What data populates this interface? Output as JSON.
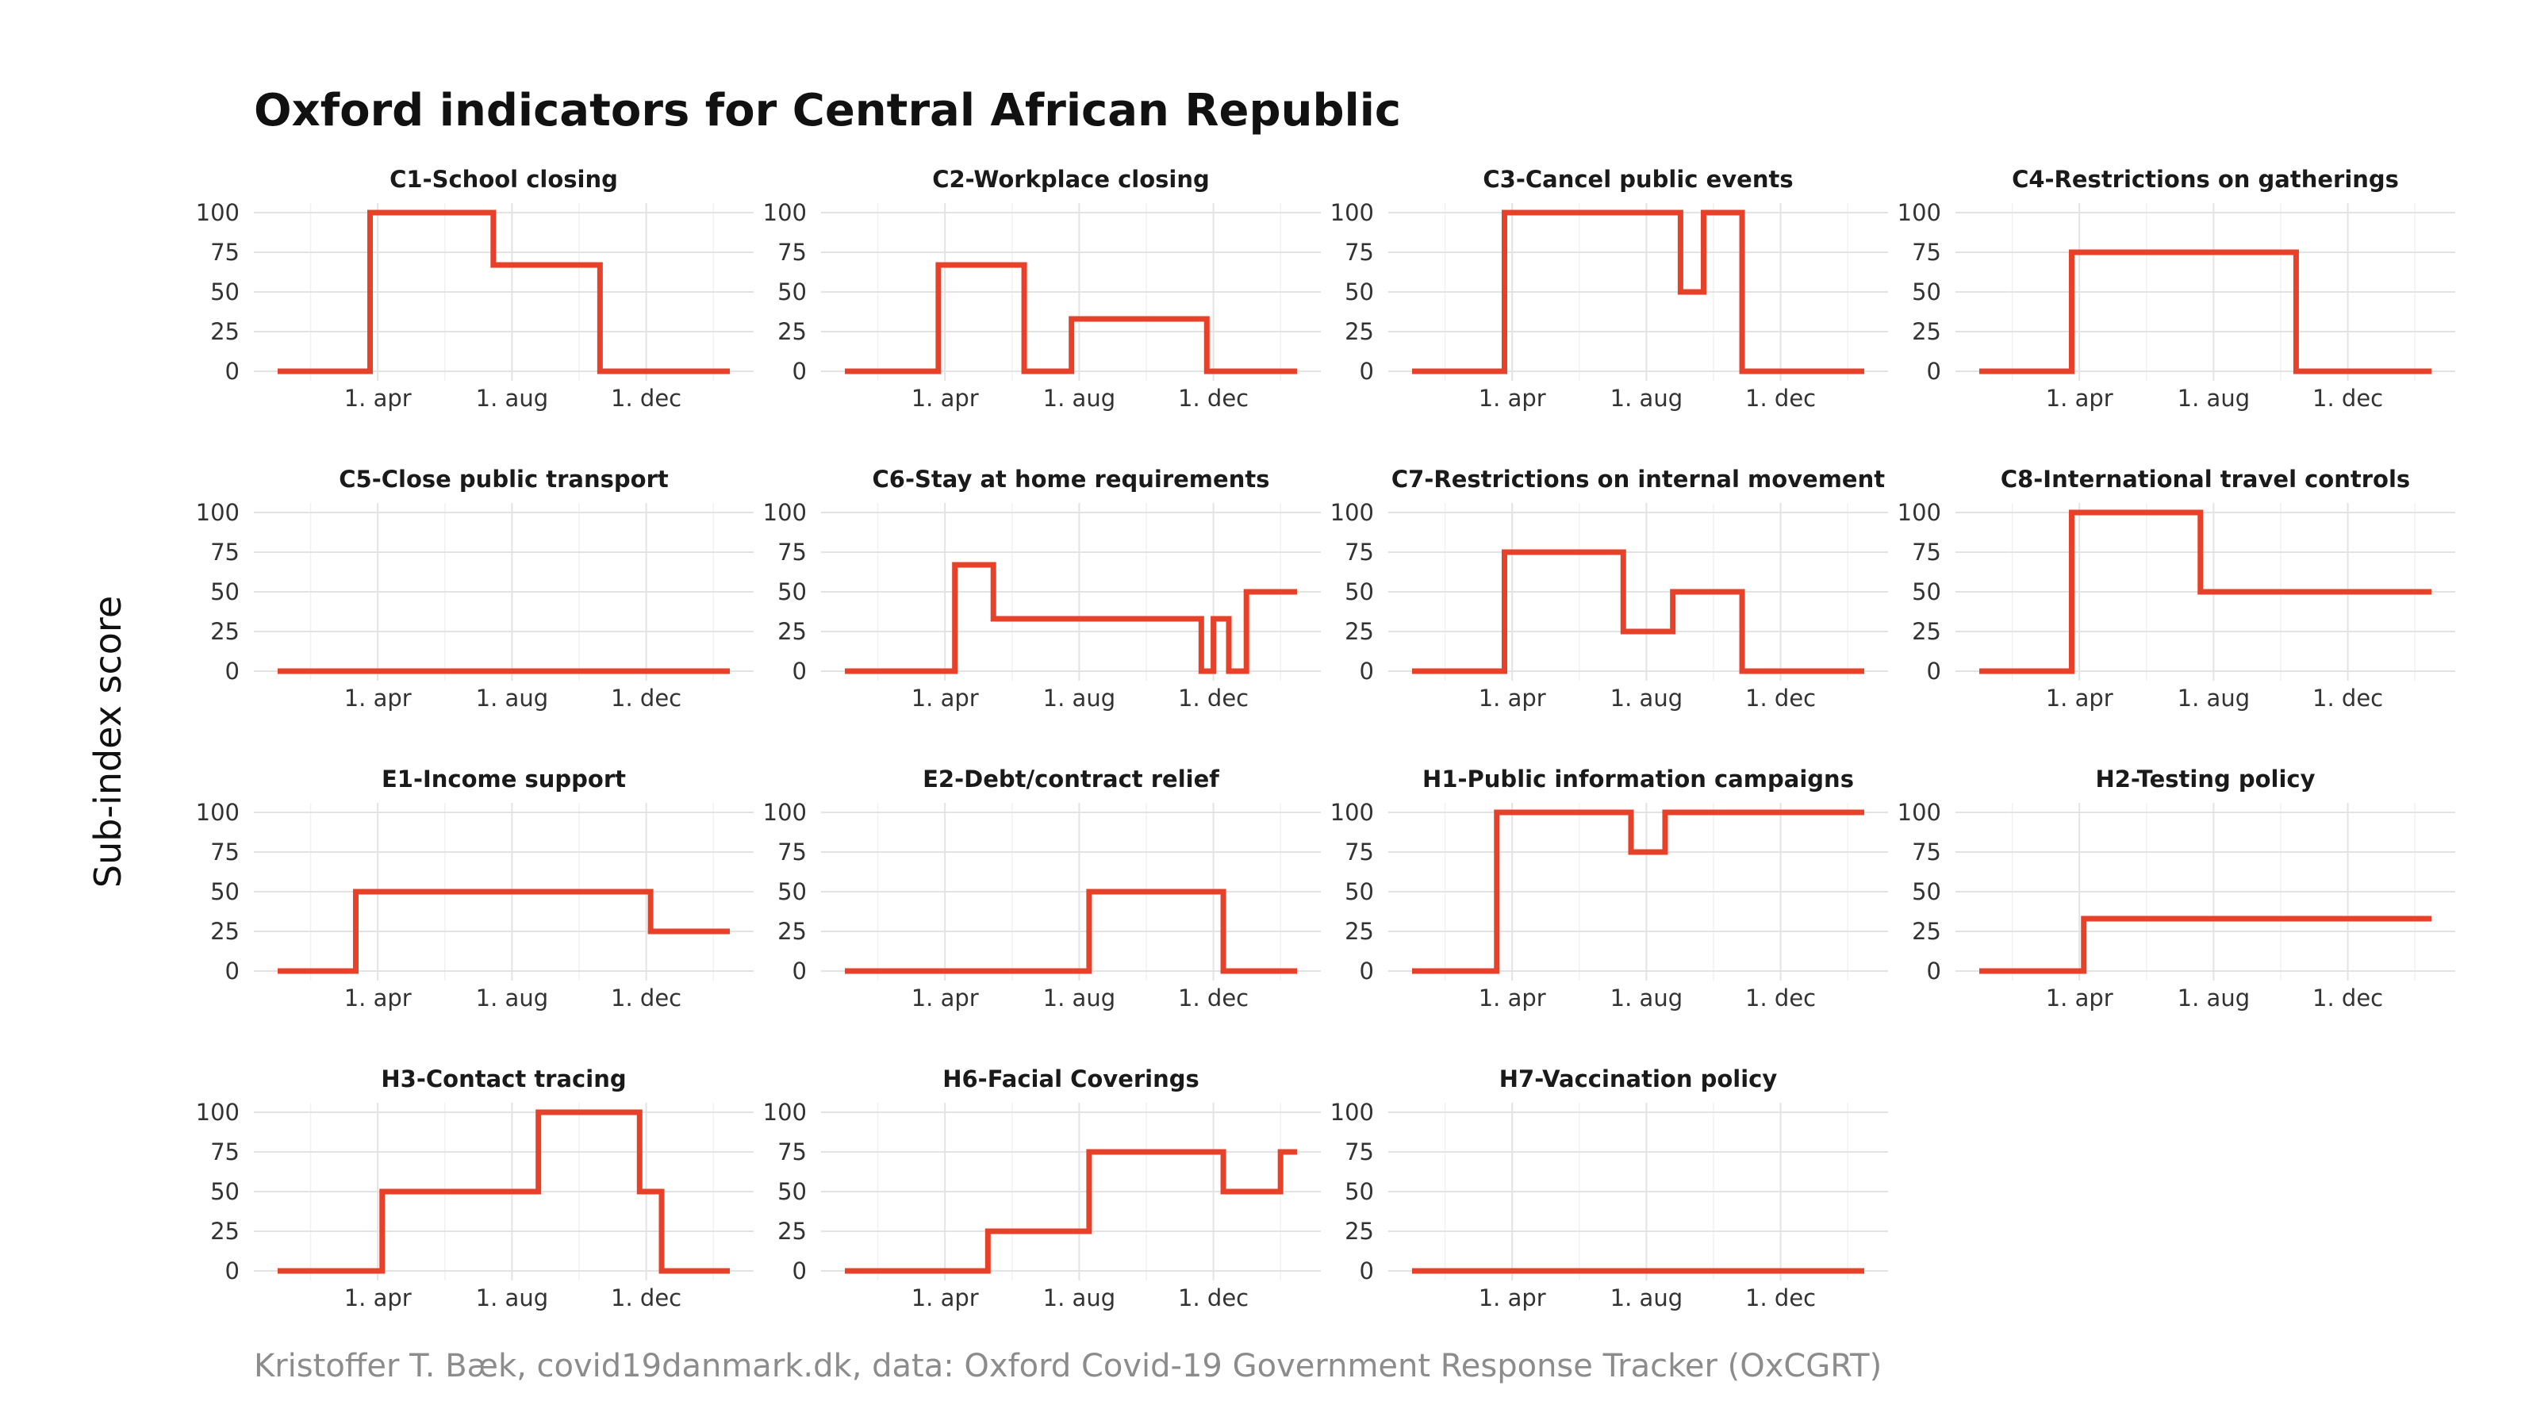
{
  "figure": {
    "title": "Oxford indicators for Central African Republic",
    "ylabel": "Sub-index score",
    "caption": "Kristoffer T. Bæk, covid19danmark.dk, data: Oxford Covid-19 Government Response Tracker (OxCGRT)",
    "line_color": "#e8412a"
  },
  "chart_data": [
    {
      "type": "line",
      "step": true,
      "title": "C1-School closing",
      "x_ticks": [
        {
          "date": "2020-04-01",
          "label": "1. apr"
        },
        {
          "date": "2020-08-01",
          "label": "1. aug"
        },
        {
          "date": "2020-12-01",
          "label": "1. dec"
        }
      ],
      "y_ticks": [
        0,
        25,
        50,
        75,
        100
      ],
      "ylim": [
        0,
        100
      ],
      "xlim": [
        "2020-01-01",
        "2021-02-15"
      ],
      "series": [
        {
          "points": [
            [
              "2020-01-01",
              0
            ],
            [
              "2020-03-25",
              100
            ],
            [
              "2020-07-15",
              67
            ],
            [
              "2020-10-20",
              0
            ],
            [
              "2021-02-15",
              0
            ]
          ]
        }
      ]
    },
    {
      "type": "line",
      "step": true,
      "title": "C2-Workplace closing",
      "x_ticks": [
        {
          "date": "2020-04-01",
          "label": "1. apr"
        },
        {
          "date": "2020-08-01",
          "label": "1. aug"
        },
        {
          "date": "2020-12-01",
          "label": "1. dec"
        }
      ],
      "y_ticks": [
        0,
        25,
        50,
        75,
        100
      ],
      "ylim": [
        0,
        100
      ],
      "xlim": [
        "2020-01-01",
        "2021-02-15"
      ],
      "series": [
        {
          "points": [
            [
              "2020-01-01",
              0
            ],
            [
              "2020-03-26",
              67
            ],
            [
              "2020-06-12",
              0
            ],
            [
              "2020-07-25",
              33
            ],
            [
              "2020-11-25",
              0
            ],
            [
              "2021-02-15",
              0
            ]
          ]
        }
      ]
    },
    {
      "type": "line",
      "step": true,
      "title": "C3-Cancel public events",
      "x_ticks": [
        {
          "date": "2020-04-01",
          "label": "1. apr"
        },
        {
          "date": "2020-08-01",
          "label": "1. aug"
        },
        {
          "date": "2020-12-01",
          "label": "1. dec"
        }
      ],
      "y_ticks": [
        0,
        25,
        50,
        75,
        100
      ],
      "ylim": [
        0,
        100
      ],
      "xlim": [
        "2020-01-01",
        "2021-02-15"
      ],
      "series": [
        {
          "points": [
            [
              "2020-01-01",
              0
            ],
            [
              "2020-03-25",
              100
            ],
            [
              "2020-09-01",
              50
            ],
            [
              "2020-09-22",
              100
            ],
            [
              "2020-10-27",
              0
            ],
            [
              "2021-02-15",
              0
            ]
          ]
        }
      ]
    },
    {
      "type": "line",
      "step": true,
      "title": "C4-Restrictions on gatherings",
      "x_ticks": [
        {
          "date": "2020-04-01",
          "label": "1. apr"
        },
        {
          "date": "2020-08-01",
          "label": "1. aug"
        },
        {
          "date": "2020-12-01",
          "label": "1. dec"
        }
      ],
      "y_ticks": [
        0,
        25,
        50,
        75,
        100
      ],
      "ylim": [
        0,
        100
      ],
      "xlim": [
        "2020-01-01",
        "2021-02-15"
      ],
      "series": [
        {
          "points": [
            [
              "2020-01-01",
              0
            ],
            [
              "2020-03-25",
              75
            ],
            [
              "2020-10-15",
              0
            ],
            [
              "2021-02-15",
              0
            ]
          ]
        }
      ]
    },
    {
      "type": "line",
      "step": true,
      "title": "C5-Close public transport",
      "x_ticks": [
        {
          "date": "2020-04-01",
          "label": "1. apr"
        },
        {
          "date": "2020-08-01",
          "label": "1. aug"
        },
        {
          "date": "2020-12-01",
          "label": "1. dec"
        }
      ],
      "y_ticks": [
        0,
        25,
        50,
        75,
        100
      ],
      "ylim": [
        0,
        100
      ],
      "xlim": [
        "2020-01-01",
        "2021-02-15"
      ],
      "series": [
        {
          "points": [
            [
              "2020-01-01",
              0
            ],
            [
              "2021-02-15",
              0
            ]
          ]
        }
      ]
    },
    {
      "type": "line",
      "step": true,
      "title": "C6-Stay at home requirements",
      "x_ticks": [
        {
          "date": "2020-04-01",
          "label": "1. apr"
        },
        {
          "date": "2020-08-01",
          "label": "1. aug"
        },
        {
          "date": "2020-12-01",
          "label": "1. dec"
        }
      ],
      "y_ticks": [
        0,
        25,
        50,
        75,
        100
      ],
      "ylim": [
        0,
        100
      ],
      "xlim": [
        "2020-01-01",
        "2021-02-15"
      ],
      "series": [
        {
          "points": [
            [
              "2020-01-01",
              0
            ],
            [
              "2020-04-10",
              67
            ],
            [
              "2020-05-15",
              33
            ],
            [
              "2020-11-20",
              0
            ],
            [
              "2020-12-01",
              33
            ],
            [
              "2020-12-15",
              0
            ],
            [
              "2020-12-31",
              50
            ],
            [
              "2021-02-15",
              50
            ]
          ]
        }
      ]
    },
    {
      "type": "line",
      "step": true,
      "title": "C7-Restrictions on internal movement",
      "x_ticks": [
        {
          "date": "2020-04-01",
          "label": "1. apr"
        },
        {
          "date": "2020-08-01",
          "label": "1. aug"
        },
        {
          "date": "2020-12-01",
          "label": "1. dec"
        }
      ],
      "y_ticks": [
        0,
        25,
        50,
        75,
        100
      ],
      "ylim": [
        0,
        100
      ],
      "xlim": [
        "2020-01-01",
        "2021-02-15"
      ],
      "series": [
        {
          "points": [
            [
              "2020-01-01",
              0
            ],
            [
              "2020-03-25",
              75
            ],
            [
              "2020-07-11",
              25
            ],
            [
              "2020-08-25",
              50
            ],
            [
              "2020-10-27",
              0
            ],
            [
              "2021-02-15",
              0
            ]
          ]
        }
      ]
    },
    {
      "type": "line",
      "step": true,
      "title": "C8-International travel controls",
      "x_ticks": [
        {
          "date": "2020-04-01",
          "label": "1. apr"
        },
        {
          "date": "2020-08-01",
          "label": "1. aug"
        },
        {
          "date": "2020-12-01",
          "label": "1. dec"
        }
      ],
      "y_ticks": [
        0,
        25,
        50,
        75,
        100
      ],
      "ylim": [
        0,
        100
      ],
      "xlim": [
        "2020-01-01",
        "2021-02-15"
      ],
      "series": [
        {
          "points": [
            [
              "2020-01-01",
              0
            ],
            [
              "2020-03-25",
              100
            ],
            [
              "2020-07-20",
              50
            ],
            [
              "2021-02-15",
              50
            ]
          ]
        }
      ]
    },
    {
      "type": "line",
      "step": true,
      "title": "E1-Income support",
      "x_ticks": [
        {
          "date": "2020-04-01",
          "label": "1. apr"
        },
        {
          "date": "2020-08-01",
          "label": "1. aug"
        },
        {
          "date": "2020-12-01",
          "label": "1. dec"
        }
      ],
      "y_ticks": [
        0,
        25,
        50,
        75,
        100
      ],
      "ylim": [
        0,
        100
      ],
      "xlim": [
        "2020-01-01",
        "2021-02-15"
      ],
      "series": [
        {
          "points": [
            [
              "2020-01-01",
              0
            ],
            [
              "2020-03-12",
              50
            ],
            [
              "2020-12-05",
              25
            ],
            [
              "2021-02-15",
              25
            ]
          ]
        }
      ]
    },
    {
      "type": "line",
      "step": true,
      "title": "E2-Debt/contract relief",
      "x_ticks": [
        {
          "date": "2020-04-01",
          "label": "1. apr"
        },
        {
          "date": "2020-08-01",
          "label": "1. aug"
        },
        {
          "date": "2020-12-01",
          "label": "1. dec"
        }
      ],
      "y_ticks": [
        0,
        25,
        50,
        75,
        100
      ],
      "ylim": [
        0,
        100
      ],
      "xlim": [
        "2020-01-01",
        "2021-02-15"
      ],
      "series": [
        {
          "points": [
            [
              "2020-01-01",
              0
            ],
            [
              "2020-08-10",
              50
            ],
            [
              "2020-12-10",
              0
            ],
            [
              "2021-02-15",
              0
            ]
          ]
        }
      ]
    },
    {
      "type": "line",
      "step": true,
      "title": "H1-Public information campaigns",
      "x_ticks": [
        {
          "date": "2020-04-01",
          "label": "1. apr"
        },
        {
          "date": "2020-08-01",
          "label": "1. aug"
        },
        {
          "date": "2020-12-01",
          "label": "1. dec"
        }
      ],
      "y_ticks": [
        0,
        25,
        50,
        75,
        100
      ],
      "ylim": [
        0,
        100
      ],
      "xlim": [
        "2020-01-01",
        "2021-02-15"
      ],
      "series": [
        {
          "points": [
            [
              "2020-01-01",
              0
            ],
            [
              "2020-03-18",
              100
            ],
            [
              "2020-07-18",
              75
            ],
            [
              "2020-08-18",
              100
            ],
            [
              "2021-02-15",
              100
            ]
          ]
        }
      ]
    },
    {
      "type": "line",
      "step": true,
      "title": "H2-Testing policy",
      "x_ticks": [
        {
          "date": "2020-04-01",
          "label": "1. apr"
        },
        {
          "date": "2020-08-01",
          "label": "1. aug"
        },
        {
          "date": "2020-12-01",
          "label": "1. dec"
        }
      ],
      "y_ticks": [
        0,
        25,
        50,
        75,
        100
      ],
      "ylim": [
        0,
        100
      ],
      "xlim": [
        "2020-01-01",
        "2021-02-15"
      ],
      "series": [
        {
          "points": [
            [
              "2020-01-01",
              0
            ],
            [
              "2020-04-05",
              33
            ],
            [
              "2021-02-15",
              33
            ]
          ]
        }
      ]
    },
    {
      "type": "line",
      "step": true,
      "title": "H3-Contact tracing",
      "x_ticks": [
        {
          "date": "2020-04-01",
          "label": "1. apr"
        },
        {
          "date": "2020-08-01",
          "label": "1. aug"
        },
        {
          "date": "2020-12-01",
          "label": "1. dec"
        }
      ],
      "y_ticks": [
        0,
        25,
        50,
        75,
        100
      ],
      "ylim": [
        0,
        100
      ],
      "xlim": [
        "2020-01-01",
        "2021-02-15"
      ],
      "series": [
        {
          "points": [
            [
              "2020-01-01",
              0
            ],
            [
              "2020-04-05",
              50
            ],
            [
              "2020-08-25",
              100
            ],
            [
              "2020-11-25",
              50
            ],
            [
              "2020-12-15",
              0
            ],
            [
              "2021-02-15",
              0
            ]
          ]
        }
      ]
    },
    {
      "type": "line",
      "step": true,
      "title": "H6-Facial Coverings",
      "x_ticks": [
        {
          "date": "2020-04-01",
          "label": "1. apr"
        },
        {
          "date": "2020-08-01",
          "label": "1. aug"
        },
        {
          "date": "2020-12-01",
          "label": "1. dec"
        }
      ],
      "y_ticks": [
        0,
        25,
        50,
        75,
        100
      ],
      "ylim": [
        0,
        100
      ],
      "xlim": [
        "2020-01-01",
        "2021-02-15"
      ],
      "series": [
        {
          "points": [
            [
              "2020-01-01",
              0
            ],
            [
              "2020-05-10",
              25
            ],
            [
              "2020-08-10",
              75
            ],
            [
              "2020-12-10",
              50
            ],
            [
              "2021-01-31",
              75
            ],
            [
              "2021-02-15",
              75
            ]
          ]
        }
      ]
    },
    {
      "type": "line",
      "step": true,
      "title": "H7-Vaccination policy",
      "x_ticks": [
        {
          "date": "2020-04-01",
          "label": "1. apr"
        },
        {
          "date": "2020-08-01",
          "label": "1. aug"
        },
        {
          "date": "2020-12-01",
          "label": "1. dec"
        }
      ],
      "y_ticks": [
        0,
        25,
        50,
        75,
        100
      ],
      "ylim": [
        0,
        100
      ],
      "xlim": [
        "2020-01-01",
        "2021-02-15"
      ],
      "series": [
        {
          "points": [
            [
              "2020-01-01",
              0
            ],
            [
              "2021-02-15",
              0
            ]
          ]
        }
      ]
    }
  ]
}
